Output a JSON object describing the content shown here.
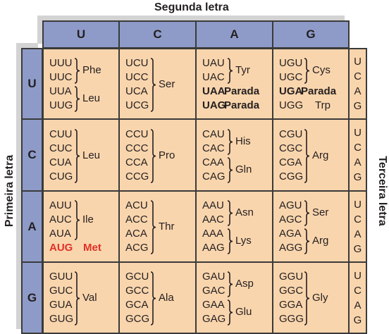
{
  "top_title": "Segunda letra",
  "left_title": "Primeira letra",
  "right_title": "Terceira letra",
  "second_letters": [
    "U",
    "C",
    "A",
    "G"
  ],
  "first_letters": [
    "U",
    "C",
    "A",
    "G"
  ],
  "third_letters": [
    "U",
    "C",
    "A",
    "G"
  ],
  "colors": {
    "header": "#8e9bc9",
    "cell": "#f9d5ad",
    "shadow": "#d3d3d3",
    "highlight": "#e03127"
  },
  "rows": [
    [
      {
        "codons": [
          "UUU",
          "UUC",
          "UUA",
          "UUG"
        ],
        "groups": [
          {
            "label": "Phe",
            "from": 0,
            "to": 1
          },
          {
            "label": "Leu",
            "from": 2,
            "to": 3
          }
        ]
      },
      {
        "codons": [
          "UCU",
          "UCC",
          "UCA",
          "UCG"
        ],
        "groups": [
          {
            "label": "Ser",
            "from": 0,
            "to": 3
          }
        ]
      },
      {
        "codons": [
          "UAU",
          "UAC",
          "UAA",
          "UAG"
        ],
        "groups": [
          {
            "label": "Tyr",
            "from": 0,
            "to": 1
          }
        ],
        "inline": [
          {
            "index": 2,
            "label": "Parada",
            "style": "bold"
          },
          {
            "index": 3,
            "label": "Parada",
            "style": "bold"
          }
        ]
      },
      {
        "codons": [
          "UGU",
          "UGC",
          "UGA",
          "UGG"
        ],
        "groups": [
          {
            "label": "Cys",
            "from": 0,
            "to": 1
          }
        ],
        "inline": [
          {
            "index": 2,
            "label": "Parada",
            "style": "bold"
          },
          {
            "index": 3,
            "label": "Trp",
            "style": "normal"
          }
        ]
      }
    ],
    [
      {
        "codons": [
          "CUU",
          "CUC",
          "CUA",
          "CUG"
        ],
        "groups": [
          {
            "label": "Leu",
            "from": 0,
            "to": 3
          }
        ]
      },
      {
        "codons": [
          "CCU",
          "CCC",
          "CCA",
          "CCG"
        ],
        "groups": [
          {
            "label": "Pro",
            "from": 0,
            "to": 3
          }
        ]
      },
      {
        "codons": [
          "CAU",
          "CAC",
          "CAA",
          "CAG"
        ],
        "groups": [
          {
            "label": "His",
            "from": 0,
            "to": 1
          },
          {
            "label": "Gln",
            "from": 2,
            "to": 3
          }
        ]
      },
      {
        "codons": [
          "CGU",
          "CGC",
          "CGA",
          "CGG"
        ],
        "groups": [
          {
            "label": "Arg",
            "from": 0,
            "to": 3
          }
        ]
      }
    ],
    [
      {
        "codons": [
          "AUU",
          "AUC",
          "AUA",
          "AUG"
        ],
        "groups": [
          {
            "label": "Ile",
            "from": 0,
            "to": 2
          }
        ],
        "inline": [
          {
            "index": 3,
            "label": "Met",
            "style": "red"
          }
        ]
      },
      {
        "codons": [
          "ACU",
          "ACC",
          "ACA",
          "ACG"
        ],
        "groups": [
          {
            "label": "Thr",
            "from": 0,
            "to": 3
          }
        ]
      },
      {
        "codons": [
          "AAU",
          "AAC",
          "AAA",
          "AAG"
        ],
        "groups": [
          {
            "label": "Asn",
            "from": 0,
            "to": 1
          },
          {
            "label": "Lys",
            "from": 2,
            "to": 3
          }
        ]
      },
      {
        "codons": [
          "AGU",
          "AGC",
          "AGA",
          "AGG"
        ],
        "groups": [
          {
            "label": "Ser",
            "from": 0,
            "to": 1
          },
          {
            "label": "Arg",
            "from": 2,
            "to": 3
          }
        ]
      }
    ],
    [
      {
        "codons": [
          "GUU",
          "GUC",
          "GUA",
          "GUG"
        ],
        "groups": [
          {
            "label": "Val",
            "from": 0,
            "to": 3
          }
        ]
      },
      {
        "codons": [
          "GCU",
          "GCC",
          "GCA",
          "GCG"
        ],
        "groups": [
          {
            "label": "Ala",
            "from": 0,
            "to": 3
          }
        ]
      },
      {
        "codons": [
          "GAU",
          "GAC",
          "GAA",
          "GAG"
        ],
        "groups": [
          {
            "label": "Asp",
            "from": 0,
            "to": 1
          },
          {
            "label": "Glu",
            "from": 2,
            "to": 3
          }
        ]
      },
      {
        "codons": [
          "GGU",
          "GGC",
          "GGA",
          "GGG"
        ],
        "groups": [
          {
            "label": "Gly",
            "from": 0,
            "to": 3
          }
        ]
      }
    ]
  ]
}
